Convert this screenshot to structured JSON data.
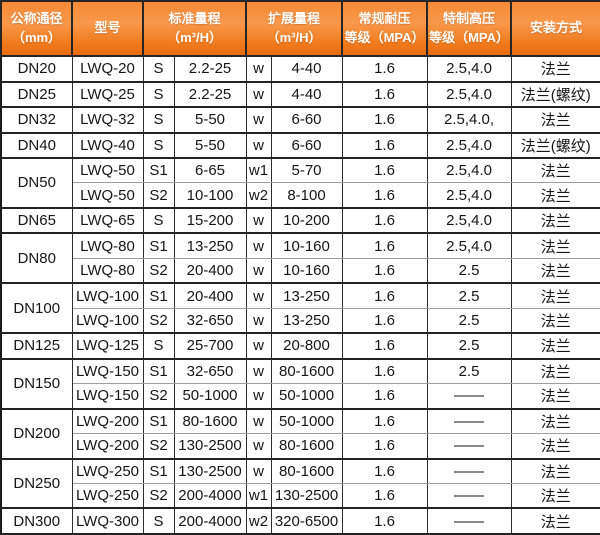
{
  "header": {
    "diameter": "公称通径\n（mm）",
    "model": "型号",
    "standard_range": "标准量程\n（m³/H）",
    "extended_range": "扩展量程\n（m³/H）",
    "normal_pressure": "常规耐压\n等级（MPA）",
    "high_pressure": "特制高压\n等级（MPA）",
    "installation": "安装方式"
  },
  "colors": {
    "header_orange_top": "#f58a35",
    "header_orange_mid": "#f9984c",
    "header_orange_bottom": "#ea6c0f",
    "header_text": "#ffffff",
    "outer_border": "#1b1b1b",
    "group_border": "#232323",
    "inner_row_border": "#9e9e9e",
    "body_text": "#161616",
    "row_background": "#ffffff"
  },
  "groups": [
    {
      "diameter": "DN20",
      "rows": [
        {
          "model": "LWQ-20",
          "range_code": "S",
          "standard_range": "2.2-25",
          "ext_code": "w",
          "extended_range": "4-40",
          "normal_pressure": "1.6",
          "high_pressure": "2.5,4.0",
          "installation": "法兰"
        }
      ]
    },
    {
      "diameter": "DN25",
      "rows": [
        {
          "model": "LWQ-25",
          "range_code": "S",
          "standard_range": "2.2-25",
          "ext_code": "w",
          "extended_range": "4-40",
          "normal_pressure": "1.6",
          "high_pressure": "2.5,4.0",
          "installation": "法兰(螺纹)"
        }
      ]
    },
    {
      "diameter": "DN32",
      "rows": [
        {
          "model": "LWQ-32",
          "range_code": "S",
          "standard_range": "5-50",
          "ext_code": "w",
          "extended_range": "6-60",
          "normal_pressure": "1.6",
          "high_pressure": "2.5,4.0,",
          "installation": "法兰"
        }
      ]
    },
    {
      "diameter": "DN40",
      "rows": [
        {
          "model": "LWQ-40",
          "range_code": "S",
          "standard_range": "5-50",
          "ext_code": "w",
          "extended_range": "6-60",
          "normal_pressure": "1.6",
          "high_pressure": "2.5,4.0",
          "installation": "法兰(螺纹)"
        }
      ]
    },
    {
      "diameter": "DN50",
      "rows": [
        {
          "model": "LWQ-50",
          "range_code": "S1",
          "standard_range": "6-65",
          "ext_code": "w1",
          "extended_range": "5-70",
          "normal_pressure": "1.6",
          "high_pressure": "2.5,4.0",
          "installation": "法兰"
        },
        {
          "model": "LWQ-50",
          "range_code": "S2",
          "standard_range": "10-100",
          "ext_code": "w2",
          "extended_range": "8-100",
          "normal_pressure": "1.6",
          "high_pressure": "2.5,4.0",
          "installation": "法兰"
        }
      ]
    },
    {
      "diameter": "DN65",
      "rows": [
        {
          "model": "LWQ-65",
          "range_code": "S",
          "standard_range": "15-200",
          "ext_code": "w",
          "extended_range": "10-200",
          "normal_pressure": "1.6",
          "high_pressure": "2.5,4.0",
          "installation": "法兰"
        }
      ]
    },
    {
      "diameter": "DN80",
      "rows": [
        {
          "model": "LWQ-80",
          "range_code": "S1",
          "standard_range": "13-250",
          "ext_code": "w",
          "extended_range": "10-160",
          "normal_pressure": "1.6",
          "high_pressure": "2.5,4.0",
          "installation": "法兰"
        },
        {
          "model": "LWQ-80",
          "range_code": "S2",
          "standard_range": "20-400",
          "ext_code": "w",
          "extended_range": "10-160",
          "normal_pressure": "1.6",
          "high_pressure": "2.5",
          "installation": "法兰"
        }
      ]
    },
    {
      "diameter": "DN100",
      "rows": [
        {
          "model": "LWQ-100",
          "range_code": "S1",
          "standard_range": "20-400",
          "ext_code": "w",
          "extended_range": "13-250",
          "normal_pressure": "1.6",
          "high_pressure": "2.5",
          "installation": "法兰"
        },
        {
          "model": "LWQ-100",
          "range_code": "S2",
          "standard_range": "32-650",
          "ext_code": "w",
          "extended_range": "13-250",
          "normal_pressure": "1.6",
          "high_pressure": "2.5",
          "installation": "法兰"
        }
      ]
    },
    {
      "diameter": "DN125",
      "rows": [
        {
          "model": "LWQ-125",
          "range_code": "S",
          "standard_range": "25-700",
          "ext_code": "w",
          "extended_range": "20-800",
          "normal_pressure": "1.6",
          "high_pressure": "2.5",
          "installation": "法兰"
        }
      ]
    },
    {
      "diameter": "DN150",
      "rows": [
        {
          "model": "LWQ-150",
          "range_code": "S1",
          "standard_range": "32-650",
          "ext_code": "w",
          "extended_range": "80-1600",
          "normal_pressure": "1.6",
          "high_pressure": "2.5",
          "installation": "法兰"
        },
        {
          "model": "LWQ-150",
          "range_code": "S2",
          "standard_range": "50-1000",
          "ext_code": "w",
          "extended_range": "50-1000",
          "normal_pressure": "1.6",
          "high_pressure": "——",
          "installation": "法兰"
        }
      ]
    },
    {
      "diameter": "DN200",
      "rows": [
        {
          "model": "LWQ-200",
          "range_code": "S1",
          "standard_range": "80-1600",
          "ext_code": "w",
          "extended_range": "50-1000",
          "normal_pressure": "1.6",
          "high_pressure": "——",
          "installation": "法兰"
        },
        {
          "model": "LWQ-200",
          "range_code": "S2",
          "standard_range": "130-2500",
          "ext_code": "w",
          "extended_range": "80-1600",
          "normal_pressure": "1.6",
          "high_pressure": "——",
          "installation": "法兰"
        }
      ]
    },
    {
      "diameter": "DN250",
      "rows": [
        {
          "model": "LWQ-250",
          "range_code": "S1",
          "standard_range": "130-2500",
          "ext_code": "w",
          "extended_range": "80-1600",
          "normal_pressure": "1.6",
          "high_pressure": "——",
          "installation": "法兰"
        },
        {
          "model": "LWQ-250",
          "range_code": "S2",
          "standard_range": "200-4000",
          "ext_code": "w1",
          "extended_range": "130-2500",
          "normal_pressure": "1.6",
          "high_pressure": "——",
          "installation": "法兰"
        }
      ]
    },
    {
      "diameter": "DN300",
      "rows": [
        {
          "model": "LWQ-300",
          "range_code": "S",
          "standard_range": "200-4000",
          "ext_code": "w2",
          "extended_range": "320-6500",
          "normal_pressure": "1.6",
          "high_pressure": "——",
          "installation": "法兰"
        }
      ]
    }
  ]
}
